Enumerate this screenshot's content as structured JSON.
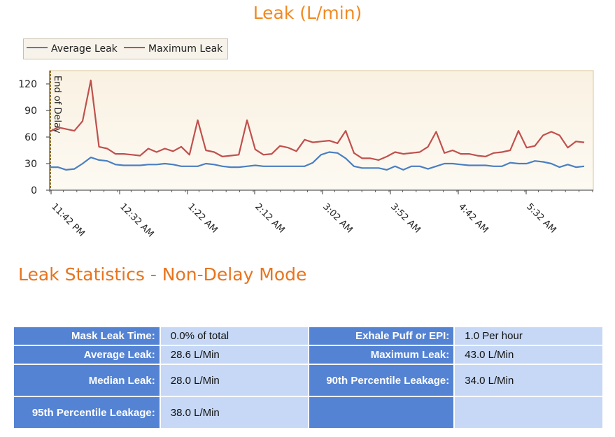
{
  "chart_data": {
    "type": "line",
    "title": "Leak (L/min)",
    "annotation": "End of Delay",
    "x_ticks": [
      "11:42 PM",
      "12:32 AM",
      "1:22 AM",
      "2:12 AM",
      "3:02 AM",
      "3:52 AM",
      "4:42 AM",
      "5:32 AM"
    ],
    "y_ticks": [
      0,
      30,
      60,
      90,
      120
    ],
    "ylim": [
      0,
      135
    ],
    "series": [
      {
        "name": "Average Leak",
        "color": "#4a7fc1",
        "values": [
          26,
          26,
          23,
          24,
          30,
          37,
          34,
          33,
          29,
          28,
          28,
          28,
          29,
          29,
          30,
          29,
          27,
          27,
          27,
          30,
          29,
          27,
          26,
          26,
          27,
          28,
          27,
          27,
          27,
          27,
          27,
          27,
          31,
          40,
          43,
          42,
          36,
          27,
          25,
          25,
          25,
          23,
          27,
          23,
          27,
          27,
          24,
          27,
          30,
          30,
          29,
          28,
          28,
          28,
          27,
          27,
          31,
          30,
          30,
          33,
          32,
          30,
          26,
          29,
          26,
          27
        ]
      },
      {
        "name": "Maximum Leak",
        "color": "#c0504d",
        "values": [
          66,
          71,
          69,
          67,
          78,
          124,
          49,
          47,
          41,
          41,
          40,
          39,
          47,
          43,
          47,
          44,
          49,
          40,
          79,
          45,
          43,
          38,
          39,
          40,
          79,
          46,
          40,
          41,
          50,
          48,
          44,
          57,
          54,
          55,
          56,
          53,
          67,
          42,
          36,
          36,
          34,
          38,
          43,
          41,
          42,
          43,
          49,
          66,
          42,
          45,
          41,
          41,
          39,
          38,
          42,
          43,
          45,
          67,
          48,
          50,
          62,
          66,
          62,
          48,
          55,
          54
        ]
      }
    ],
    "grid": false,
    "legend": "top-left"
  },
  "stats": {
    "title": "Leak Statistics - Non-Delay Mode",
    "rows": [
      {
        "l1": "Mask Leak Time:",
        "v1": "0.0% of total",
        "l2": "Exhale Puff or EPI:",
        "v2": "1.0 Per hour"
      },
      {
        "l1": "Average Leak:",
        "v1": "28.6 L/Min",
        "l2": "Maximum Leak:",
        "v2": "43.0 L/Min"
      },
      {
        "l1": "Median Leak:",
        "v1": "28.0 L/Min",
        "l2": "90th Percentile Leakage:",
        "v2": "34.0 L/Min"
      },
      {
        "l1": "95th Percentile Leakage:",
        "v1": "38.0 L/Min",
        "l2": "",
        "v2": ""
      }
    ]
  }
}
